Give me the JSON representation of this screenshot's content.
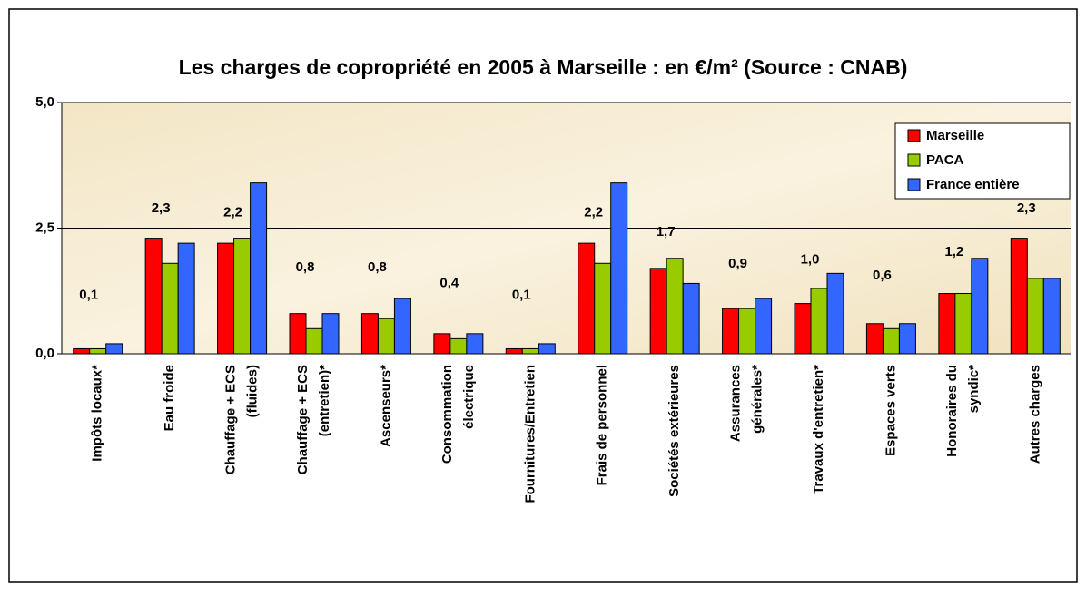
{
  "chart_data": {
    "type": "bar",
    "title": "Les charges de copropriété en 2005 à Marseille : en €/m² (Source : CNAB)",
    "categories": [
      "Impôts locaux*",
      "Eau froide",
      "Chauffage + ECS\n(fluides)",
      "Chauffage + ECS\n(entretien)*",
      "Ascenseurs*",
      "Consommation\nélectrique",
      "Fournitures/Entretien",
      "Frais de personnel",
      "Sociétés extérieures",
      "Assurances\ngénérales*",
      "Travaux d'entretien*",
      "Espaces verts",
      "Honoraires du\nsyndic*",
      "Autres charges"
    ],
    "series": [
      {
        "name": "Marseille",
        "color": "#ff0000",
        "values": [
          0.1,
          2.3,
          2.2,
          0.8,
          0.8,
          0.4,
          0.1,
          2.2,
          1.7,
          0.9,
          1.0,
          0.6,
          1.2,
          2.3
        ],
        "value_labels": [
          "0,1",
          "2,3",
          "2,2",
          "0,8",
          "0,8",
          "0,4",
          "0,1",
          "2,2",
          "1,7",
          "0,9",
          "1,0",
          "0,6",
          "1,2",
          "2,3"
        ]
      },
      {
        "name": "PACA",
        "color": "#99cc00",
        "values": [
          0.1,
          1.8,
          2.3,
          0.5,
          0.7,
          0.3,
          0.1,
          1.8,
          1.9,
          0.9,
          1.3,
          0.5,
          1.2,
          1.5
        ]
      },
      {
        "name": "France entière",
        "color": "#3366ff",
        "values": [
          0.2,
          2.2,
          3.4,
          0.8,
          1.1,
          0.4,
          0.2,
          3.4,
          1.4,
          1.1,
          1.6,
          0.6,
          1.9,
          1.5
        ]
      }
    ],
    "ylim": [
      0,
      5
    ],
    "yticks": [
      {
        "value": 0,
        "label": "0,0"
      },
      {
        "value": 2.5,
        "label": "2,5"
      },
      {
        "value": 5,
        "label": "5,0"
      }
    ],
    "grid": true,
    "legend": "top-right"
  }
}
